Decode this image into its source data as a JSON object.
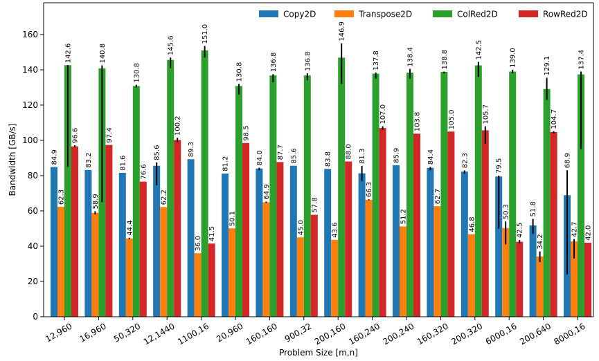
{
  "chart_data": {
    "type": "bar",
    "title": "",
    "xlabel": "Problem Size [m,n]",
    "ylabel": "Bandwidth [GB/s]",
    "ylim": [
      0,
      178
    ],
    "yticks": [
      0,
      20,
      40,
      60,
      80,
      100,
      120,
      140,
      160
    ],
    "grid": false,
    "legend_position": "top-right",
    "categories": [
      "12,960",
      "16,960",
      "50,320",
      "12,1440",
      "1100,16",
      "20,960",
      "160,160",
      "900,32",
      "200,160",
      "160,240",
      "200,240",
      "160,320",
      "200,320",
      "6000,16",
      "200,640",
      "8000,16"
    ],
    "series": [
      {
        "name": "Copy2D",
        "color": "#1f77b4",
        "values": [
          84.9,
          83.2,
          81.6,
          85.6,
          89.3,
          81.2,
          84.0,
          85.6,
          83.8,
          81.3,
          85.9,
          84.4,
          82.3,
          79.5,
          51.8,
          68.9
        ],
        "labels": [
          "84.9",
          "83.2",
          "81.6",
          "85.6",
          "89.3",
          "81.2",
          "84.0",
          "85.6",
          "83.8",
          "81.3",
          "85.9",
          "84.4",
          "82.3",
          "79.5",
          "51.8",
          "68.9"
        ],
        "err_low": [
          84.9,
          83.2,
          81.6,
          74.5,
          89.3,
          81.2,
          83.0,
          85.6,
          83.8,
          77.0,
          85.9,
          83.0,
          81.0,
          50.0,
          47.0,
          24.0
        ],
        "err_high": [
          84.9,
          83.2,
          81.6,
          87.5,
          89.3,
          81.2,
          84.5,
          85.6,
          83.8,
          85.5,
          85.9,
          85.0,
          83.0,
          80.0,
          55.5,
          83.0
        ]
      },
      {
        "name": "Transpose2D",
        "color": "#ff7f0e",
        "values": [
          62.3,
          58.9,
          44.4,
          62.2,
          36.0,
          50.1,
          64.9,
          45.0,
          43.6,
          66.3,
          51.2,
          62.7,
          46.8,
          50.3,
          34.2,
          42.7
        ],
        "labels": [
          "62.3",
          "58.9",
          "44.4",
          "62.2",
          "36.0",
          "50.1",
          "64.9",
          "45.0",
          "43.6",
          "66.3",
          "51.2",
          "62.7",
          "46.8",
          "50.3",
          "34.2",
          "42.7"
        ],
        "err_low": [
          62.3,
          58.0,
          44.0,
          62.2,
          36.0,
          50.1,
          64.5,
          45.0,
          43.6,
          66.0,
          51.2,
          62.7,
          46.8,
          41.0,
          31.0,
          33.0
        ],
        "err_high": [
          62.3,
          59.8,
          44.8,
          62.2,
          36.0,
          50.1,
          65.3,
          45.0,
          43.6,
          66.6,
          51.2,
          62.7,
          46.8,
          54.0,
          37.0,
          44.0
        ]
      },
      {
        "name": "ColRed2D",
        "color": "#2ca02c",
        "values": [
          142.6,
          140.8,
          130.8,
          145.6,
          151.0,
          130.8,
          136.8,
          136.8,
          146.9,
          137.8,
          138.4,
          138.8,
          142.5,
          139.0,
          129.1,
          137.4
        ],
        "labels": [
          "142.6",
          "140.8",
          "130.8",
          "145.6",
          "151.0",
          "130.8",
          "136.8",
          "136.8",
          "146.9",
          "137.8",
          "138.4",
          "138.8",
          "142.5",
          "139.0",
          "129.1",
          "137.4"
        ],
        "err_low": [
          85.0,
          65.0,
          130.0,
          141.0,
          147.0,
          126.0,
          133.0,
          134.0,
          132.0,
          135.0,
          135.0,
          138.0,
          136.0,
          138.0,
          123.0,
          95.0
        ],
        "err_high": [
          142.6,
          142.5,
          131.5,
          147.0,
          153.5,
          132.0,
          137.5,
          138.0,
          155.0,
          138.5,
          140.5,
          139.0,
          144.5,
          140.0,
          135.5,
          139.0
        ]
      },
      {
        "name": "RowRed2D",
        "color": "#d62728",
        "values": [
          96.6,
          97.4,
          76.6,
          100.2,
          41.5,
          98.5,
          87.7,
          57.8,
          88.0,
          107.0,
          103.8,
          105.0,
          105.7,
          42.5,
          104.7,
          42.0
        ],
        "labels": [
          "96.6",
          "97.4",
          "76.6",
          "100.2",
          "41.5",
          "98.5",
          "87.7",
          "57.8",
          "88.0",
          "107.0",
          "103.8",
          "105.0",
          "105.7",
          "42.5",
          "104.7",
          "42.0"
        ],
        "err_low": [
          96.0,
          97.4,
          76.6,
          99.0,
          41.5,
          98.5,
          87.7,
          57.8,
          88.0,
          106.0,
          103.8,
          105.0,
          98.0,
          41.5,
          104.0,
          42.0
        ],
        "err_high": [
          97.2,
          97.4,
          76.6,
          101.5,
          41.5,
          98.5,
          87.7,
          57.8,
          88.0,
          108.0,
          103.8,
          105.0,
          108.0,
          43.5,
          105.2,
          42.0
        ]
      }
    ]
  }
}
